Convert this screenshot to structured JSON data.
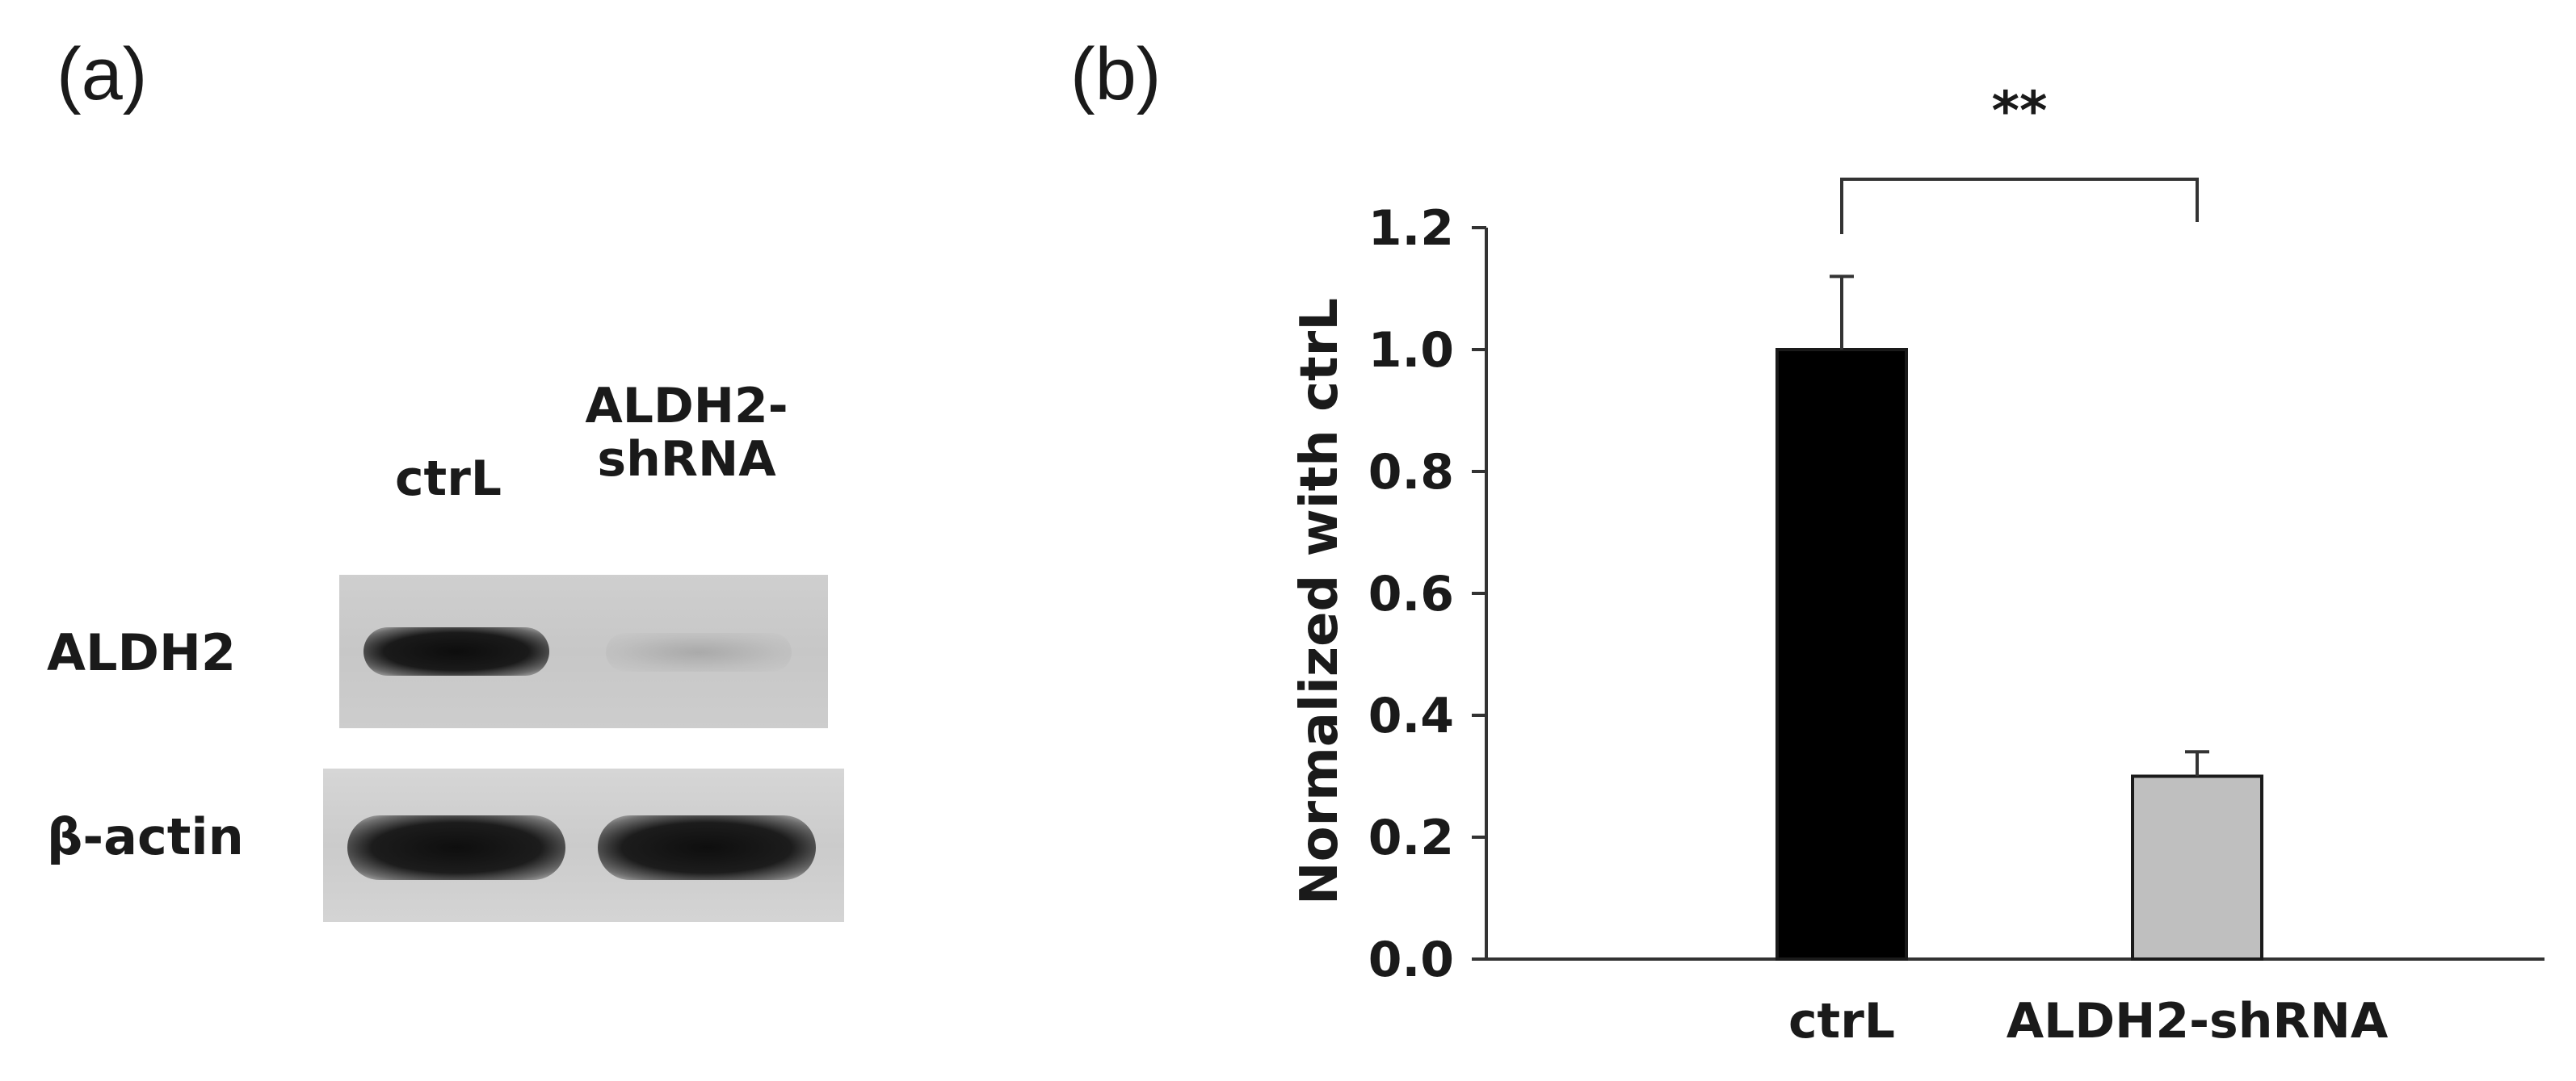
{
  "panel_a": {
    "label": "(a)",
    "lanes": [
      "ctrL",
      "ALDH2-\nshRNA"
    ],
    "proteins": [
      "ALDH2",
      "β-actin"
    ]
  },
  "panel_b": {
    "label": "(b)"
  },
  "chart_data": {
    "type": "bar",
    "categories": [
      "ctrL",
      "ALDH2-shRNA"
    ],
    "values": [
      1.0,
      0.3
    ],
    "errors": [
      0.12,
      0.04
    ],
    "colors": [
      "#000000",
      "#bfbfbf"
    ],
    "ylabel": "Normalized with ctrL",
    "xlabel": "",
    "ylim": [
      0,
      1.2
    ],
    "yticks": [
      "0.0",
      "0.2",
      "0.4",
      "0.6",
      "0.8",
      "1.0",
      "1.2"
    ],
    "significance": "**",
    "grid": false
  }
}
